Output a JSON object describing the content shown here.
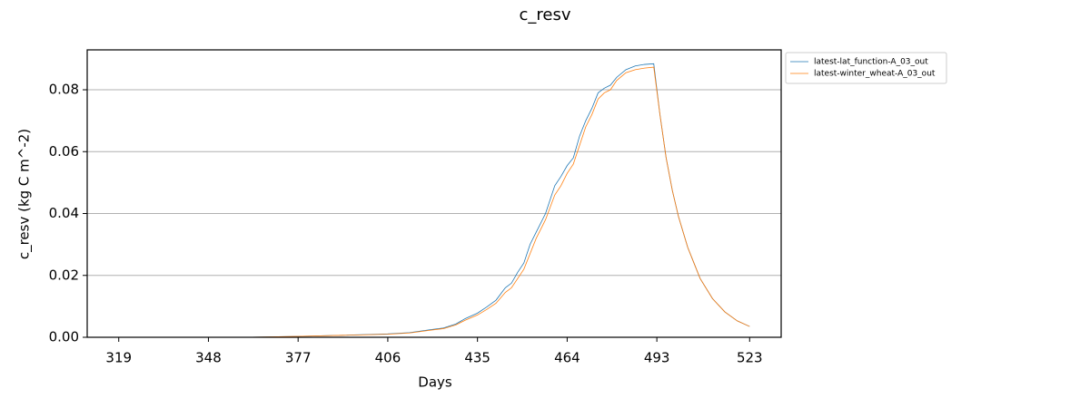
{
  "chart_data": {
    "type": "line",
    "title": "c_resv",
    "x_label": "Days",
    "y_label": "c_resv (kg C m^-2)",
    "x": [
      319,
      340,
      360,
      377,
      390,
      406,
      413,
      420,
      424,
      428,
      431,
      435,
      438,
      441,
      444,
      446,
      448,
      450,
      452,
      454,
      457,
      460,
      462,
      464,
      466,
      468,
      470,
      472,
      474,
      476,
      478,
      480,
      483,
      486,
      489,
      492,
      494,
      496,
      498,
      500,
      503,
      507,
      511,
      515,
      519,
      523
    ],
    "series": [
      {
        "name": "latest-lat_function-A_03_out",
        "color": "#1f77b4",
        "values": [
          0,
          0,
          0,
          0.0003,
          0.0006,
          0.0011,
          0.0015,
          0.0025,
          0.003,
          0.0043,
          0.006,
          0.0078,
          0.0098,
          0.012,
          0.016,
          0.0175,
          0.021,
          0.024,
          0.03,
          0.034,
          0.04,
          0.049,
          0.052,
          0.0555,
          0.058,
          0.065,
          0.07,
          0.074,
          0.079,
          0.0805,
          0.0815,
          0.084,
          0.0865,
          0.0877,
          0.0882,
          0.0884,
          0.072,
          0.058,
          0.0475,
          0.039,
          0.029,
          0.019,
          0.0125,
          0.0082,
          0.0053,
          0.0035
        ]
      },
      {
        "name": "latest-winter_wheat-A_03_out",
        "color": "#ff7f0e",
        "values": [
          0,
          0,
          0,
          0.0003,
          0.0006,
          0.001,
          0.0014,
          0.0023,
          0.0028,
          0.004,
          0.0055,
          0.0072,
          0.009,
          0.011,
          0.0145,
          0.016,
          0.019,
          0.022,
          0.027,
          0.032,
          0.038,
          0.046,
          0.049,
          0.053,
          0.056,
          0.062,
          0.068,
          0.072,
          0.077,
          0.079,
          0.08,
          0.083,
          0.0855,
          0.0865,
          0.087,
          0.0873,
          0.072,
          0.058,
          0.0475,
          0.039,
          0.029,
          0.019,
          0.0125,
          0.0082,
          0.0053,
          0.0035
        ]
      }
    ],
    "xlim": [
      308.8,
      533.2
    ],
    "xticks": [
      319,
      348,
      377,
      406,
      435,
      464,
      493,
      523
    ],
    "ylim": [
      0,
      0.0929
    ],
    "yticks": [
      {
        "value": 0,
        "label": "0.00"
      },
      0.02,
      0.04,
      0.06,
      0.08
    ],
    "grid": "y",
    "legend_loc": "outside upper right"
  }
}
